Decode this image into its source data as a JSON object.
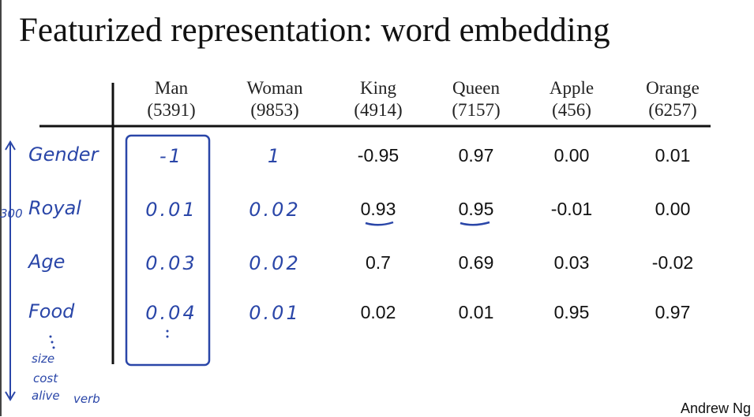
{
  "title": "Featurized representation: word embedding",
  "table": {
    "columns": [
      {
        "word": "Man",
        "index": "(5391)"
      },
      {
        "word": "Woman",
        "index": "(9853)"
      },
      {
        "word": "King",
        "index": "(4914)"
      },
      {
        "word": "Queen",
        "index": "(7157)"
      },
      {
        "word": "Apple",
        "index": "(456)"
      },
      {
        "word": "Orange",
        "index": "(6257)"
      }
    ],
    "rows": [
      {
        "feature": "Gender",
        "values": [
          "-1",
          "1",
          "-0.95",
          "0.97",
          "0.00",
          "0.01"
        ]
      },
      {
        "feature": "Royal",
        "values": [
          "0.01",
          "0.02",
          "0.93",
          "0.95",
          "-0.01",
          "0.00"
        ]
      },
      {
        "feature": "Age",
        "values": [
          "0.03",
          "0.02",
          "0.7",
          "0.69",
          "0.03",
          "-0.02"
        ]
      },
      {
        "feature": "Food",
        "values": [
          "0.04",
          "0.01",
          "0.02",
          "0.01",
          "0.95",
          "0.97"
        ]
      }
    ],
    "more_features": [
      "size",
      "cost",
      "alive",
      "verb"
    ],
    "dimension": "300"
  },
  "footer": "Andrew Ng"
}
